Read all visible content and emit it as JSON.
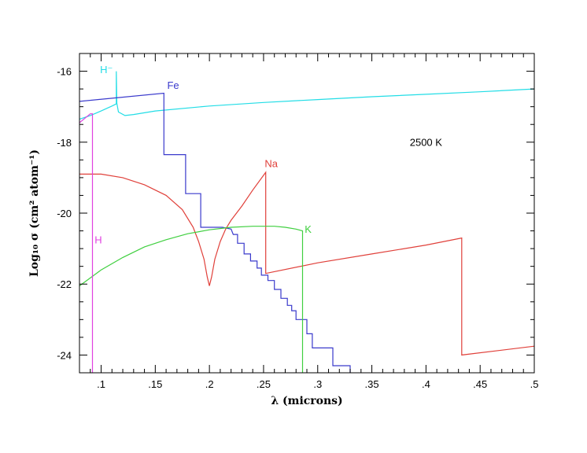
{
  "chart_data": {
    "type": "line",
    "xlabel": "λ (microns)",
    "ylabel": "Log₁₀ σ (cm² atom⁻¹)",
    "xlim": [
      0.08,
      0.5
    ],
    "ylim": [
      -24.5,
      -15.5
    ],
    "xticks": [
      {
        "value": 0.1,
        "label": ".1"
      },
      {
        "value": 0.15,
        "label": ".15"
      },
      {
        "value": 0.2,
        "label": ".2"
      },
      {
        "value": 0.25,
        "label": ".25"
      },
      {
        "value": 0.3,
        "label": ".3"
      },
      {
        "value": 0.35,
        "label": ".35"
      },
      {
        "value": 0.4,
        "label": ".4"
      },
      {
        "value": 0.45,
        "label": ".45"
      },
      {
        "value": 0.5,
        "label": ".5"
      }
    ],
    "yticks": [
      {
        "value": -16,
        "label": "-16"
      },
      {
        "value": -18,
        "label": "-18"
      },
      {
        "value": -20,
        "label": "-20"
      },
      {
        "value": -22,
        "label": "-22"
      },
      {
        "value": -24,
        "label": "-24"
      }
    ],
    "annotation": "2500 K",
    "grid": false,
    "series": [
      {
        "name": "H⁻",
        "color": "#22dde6",
        "points": [
          [
            0.08,
            -17.35
          ],
          [
            0.09,
            -17.25
          ],
          [
            0.1,
            -17.12
          ],
          [
            0.11,
            -16.98
          ],
          [
            0.114,
            -16.92
          ],
          [
            0.114,
            -16.0
          ],
          [
            0.1145,
            -16.9
          ],
          [
            0.116,
            -17.15
          ],
          [
            0.122,
            -17.25
          ],
          [
            0.13,
            -17.22
          ],
          [
            0.15,
            -17.12
          ],
          [
            0.2,
            -16.98
          ],
          [
            0.25,
            -16.88
          ],
          [
            0.3,
            -16.8
          ],
          [
            0.35,
            -16.72
          ],
          [
            0.4,
            -16.65
          ],
          [
            0.45,
            -16.58
          ],
          [
            0.5,
            -16.5
          ]
        ]
      },
      {
        "name": "Fe",
        "color": "#3a3acc",
        "points": [
          [
            0.08,
            -16.85
          ],
          [
            0.158,
            -16.62
          ],
          [
            0.158,
            -18.35
          ],
          [
            0.178,
            -18.35
          ],
          [
            0.178,
            -19.45
          ],
          [
            0.192,
            -19.45
          ],
          [
            0.192,
            -20.4
          ],
          [
            0.2,
            -20.4
          ],
          [
            0.212,
            -20.4
          ],
          [
            0.22,
            -20.45
          ],
          [
            0.222,
            -20.6
          ],
          [
            0.226,
            -20.6
          ],
          [
            0.226,
            -20.85
          ],
          [
            0.232,
            -20.85
          ],
          [
            0.232,
            -21.15
          ],
          [
            0.238,
            -21.15
          ],
          [
            0.238,
            -21.35
          ],
          [
            0.244,
            -21.35
          ],
          [
            0.244,
            -21.55
          ],
          [
            0.248,
            -21.55
          ],
          [
            0.248,
            -21.75
          ],
          [
            0.254,
            -21.75
          ],
          [
            0.254,
            -21.9
          ],
          [
            0.26,
            -21.9
          ],
          [
            0.26,
            -22.15
          ],
          [
            0.266,
            -22.15
          ],
          [
            0.266,
            -22.4
          ],
          [
            0.272,
            -22.4
          ],
          [
            0.272,
            -22.6
          ],
          [
            0.276,
            -22.6
          ],
          [
            0.276,
            -22.75
          ],
          [
            0.28,
            -22.75
          ],
          [
            0.28,
            -23.0
          ],
          [
            0.29,
            -23.0
          ],
          [
            0.29,
            -23.4
          ],
          [
            0.295,
            -23.4
          ],
          [
            0.295,
            -23.8
          ],
          [
            0.314,
            -23.8
          ],
          [
            0.314,
            -24.3
          ],
          [
            0.33,
            -24.3
          ],
          [
            0.33,
            -24.5
          ]
        ]
      },
      {
        "name": "Na",
        "color": "#e0403a",
        "points": [
          [
            0.08,
            -18.9
          ],
          [
            0.1,
            -18.9
          ],
          [
            0.12,
            -19.0
          ],
          [
            0.14,
            -19.2
          ],
          [
            0.16,
            -19.5
          ],
          [
            0.175,
            -19.9
          ],
          [
            0.185,
            -20.4
          ],
          [
            0.19,
            -20.8
          ],
          [
            0.195,
            -21.3
          ],
          [
            0.198,
            -21.8
          ],
          [
            0.2,
            -22.05
          ],
          [
            0.202,
            -21.8
          ],
          [
            0.205,
            -21.3
          ],
          [
            0.21,
            -20.8
          ],
          [
            0.215,
            -20.45
          ],
          [
            0.22,
            -20.2
          ],
          [
            0.23,
            -19.8
          ],
          [
            0.24,
            -19.35
          ],
          [
            0.252,
            -18.85
          ],
          [
            0.252,
            -21.7
          ],
          [
            0.3,
            -21.4
          ],
          [
            0.35,
            -21.15
          ],
          [
            0.4,
            -20.9
          ],
          [
            0.433,
            -20.7
          ],
          [
            0.433,
            -24.0
          ],
          [
            0.5,
            -23.75
          ]
        ]
      },
      {
        "name": "K",
        "color": "#3fcf3f",
        "points": [
          [
            0.08,
            -22.05
          ],
          [
            0.1,
            -21.6
          ],
          [
            0.12,
            -21.25
          ],
          [
            0.14,
            -20.95
          ],
          [
            0.16,
            -20.75
          ],
          [
            0.18,
            -20.58
          ],
          [
            0.2,
            -20.47
          ],
          [
            0.22,
            -20.4
          ],
          [
            0.24,
            -20.37
          ],
          [
            0.26,
            -20.37
          ],
          [
            0.27,
            -20.4
          ],
          [
            0.28,
            -20.45
          ],
          [
            0.286,
            -20.5
          ],
          [
            0.286,
            -24.5
          ]
        ]
      },
      {
        "name": "H",
        "color": "#e040e0",
        "points": [
          [
            0.08,
            -17.45
          ],
          [
            0.09,
            -17.2
          ],
          [
            0.092,
            -17.2
          ],
          [
            0.092,
            -24.5
          ]
        ]
      }
    ],
    "series_labels": [
      {
        "text": "H⁻",
        "x": 0.099,
        "y": -16.05,
        "color": "#22dde6"
      },
      {
        "text": "Fe",
        "x": 0.161,
        "y": -16.5,
        "color": "#3a3acc"
      },
      {
        "text": "Na",
        "x": 0.251,
        "y": -18.7,
        "color": "#e0403a"
      },
      {
        "text": "K",
        "x": 0.288,
        "y": -20.55,
        "color": "#3fcf3f"
      },
      {
        "text": "H",
        "x": 0.094,
        "y": -20.85,
        "color": "#e040e0"
      }
    ],
    "annotation_pos": {
      "x": 0.385,
      "y": -18.1
    }
  }
}
